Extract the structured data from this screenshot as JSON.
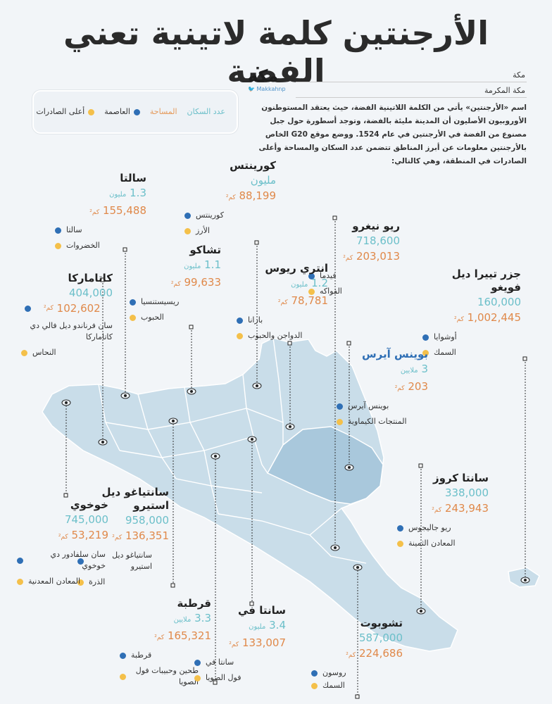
{
  "title": "الأرجنتين كلمة لاتينية تعني الفضة",
  "brand": {
    "logo": "مكة",
    "handle": "Makkahnp"
  },
  "source": {
    "line1": "مكة",
    "line2": "مكة المكرمة"
  },
  "intro": "اسم «الأرجنتين» يأتي من الكلمة اللاتينية الفضة، حيث يعتقد المستوطنون الأوروبيون الأصليون أن المدينة مليئة بالفضة، وتوجد أسطورة حول جبل مصنوع من الفضة في الأرجنتين في عام 1524.  ووضع موقع G20 الخاص بالأرجنتين معلومات عن أبرز المناطق تتضمن عدد السكان والمساحة وأعلى الصادرات في المنطقة، وهي كالتالي:",
  "legend": {
    "population": "عدد السكان",
    "area": "المساحة",
    "capital": "العاصمة",
    "exports": "أعلى الصادرات"
  },
  "colors": {
    "land": "#c9dde9",
    "land_dark": "#a9c8dc",
    "border": "#ffffff",
    "capital_dot": "#2f6fb5",
    "export_dot": "#f4c04a",
    "population": "#6bbfc9",
    "area": "#e0894a"
  },
  "provinces": {
    "corrientes": {
      "name": "كورينتس",
      "population": "مليون",
      "area": "88,199",
      "area_unit": "كم²",
      "capital": "كورينتس",
      "exports": "الأرز"
    },
    "salta": {
      "name": "سالتا",
      "population": "1.3",
      "pop_unit": "مليون",
      "area": "155,488",
      "area_unit": "كم²",
      "capital": "سالتا",
      "exports": "الخضروات"
    },
    "rionegro": {
      "name": "ريو نيغرو",
      "population": "718,600",
      "area": "203,013",
      "area_unit": "كم²",
      "capital": "فيدما",
      "exports": "الفواكه"
    },
    "chaco": {
      "name": "تشاكو",
      "population": "1.1",
      "pop_unit": "مليون",
      "area": "99,633",
      "area_unit": "كم²",
      "capital": "ريسيستنسيا",
      "exports": "الحبوب"
    },
    "entrerios": {
      "name": "انتري ريوس",
      "population": "1.2",
      "pop_unit": "مليون",
      "area": "78,781",
      "area_unit": "كم²",
      "capital": "بارانا",
      "exports": "الدواجن والحبوب"
    },
    "tierradelfuego": {
      "name": "جزر تييرا ديل فويغو",
      "population": "160,000",
      "area": "1,002,445",
      "area_unit": "كم²",
      "capital": "أوشوايا",
      "exports": "السمك"
    },
    "catamarca": {
      "name": "كاتاماركا",
      "population": "404,000",
      "area": "102,602",
      "area_unit": "كم²",
      "capital": "سان فرناندو ديل فالي دي كاتاماركا",
      "exports": "النحاس"
    },
    "buenosaires": {
      "name": "بوينس آيرس",
      "population": "3",
      "pop_unit": "ملايين",
      "area": "203",
      "area_unit": "كم²",
      "capital": "بوينس آيرس",
      "exports": "المنتجات الكيماوية"
    },
    "jujuy": {
      "name": "خوخوي",
      "population": "745,000",
      "area": "53,219",
      "area_unit": "كم²",
      "capital": "سان سلفادور دي خوخوي",
      "exports": "المعادن المعدنية"
    },
    "santiago": {
      "name": "سانتياغو ديل استيرو",
      "population": "958,000",
      "area": "136,351",
      "area_unit": "كم²",
      "capital": "سانتياغو ديل استيرو",
      "exports": "الذرة"
    },
    "santacruz": {
      "name": "سانتا كروز",
      "population": "338,000",
      "area": "243,943",
      "area_unit": "كم²",
      "capital": "ريو جاليجوس",
      "exports": "المعادن الثمينة"
    },
    "cordoba": {
      "name": "قرطبة",
      "population": "3.3",
      "pop_unit": "ملايين",
      "area": "165,321",
      "area_unit": "كم²",
      "capital": "قرطبة",
      "exports": "طحين وحبيبات فول الصويا"
    },
    "santafe": {
      "name": "سانتا في",
      "population": "3.4",
      "pop_unit": "مليون",
      "area": "133,007",
      "area_unit": "كم²",
      "capital": "سانتا في",
      "exports": "فول الصويا"
    },
    "chubut": {
      "name": "تشوبوت",
      "population": "587,000",
      "area": "224,686",
      "area_unit": "كم²",
      "capital": "روسون",
      "exports": "السمك"
    }
  }
}
